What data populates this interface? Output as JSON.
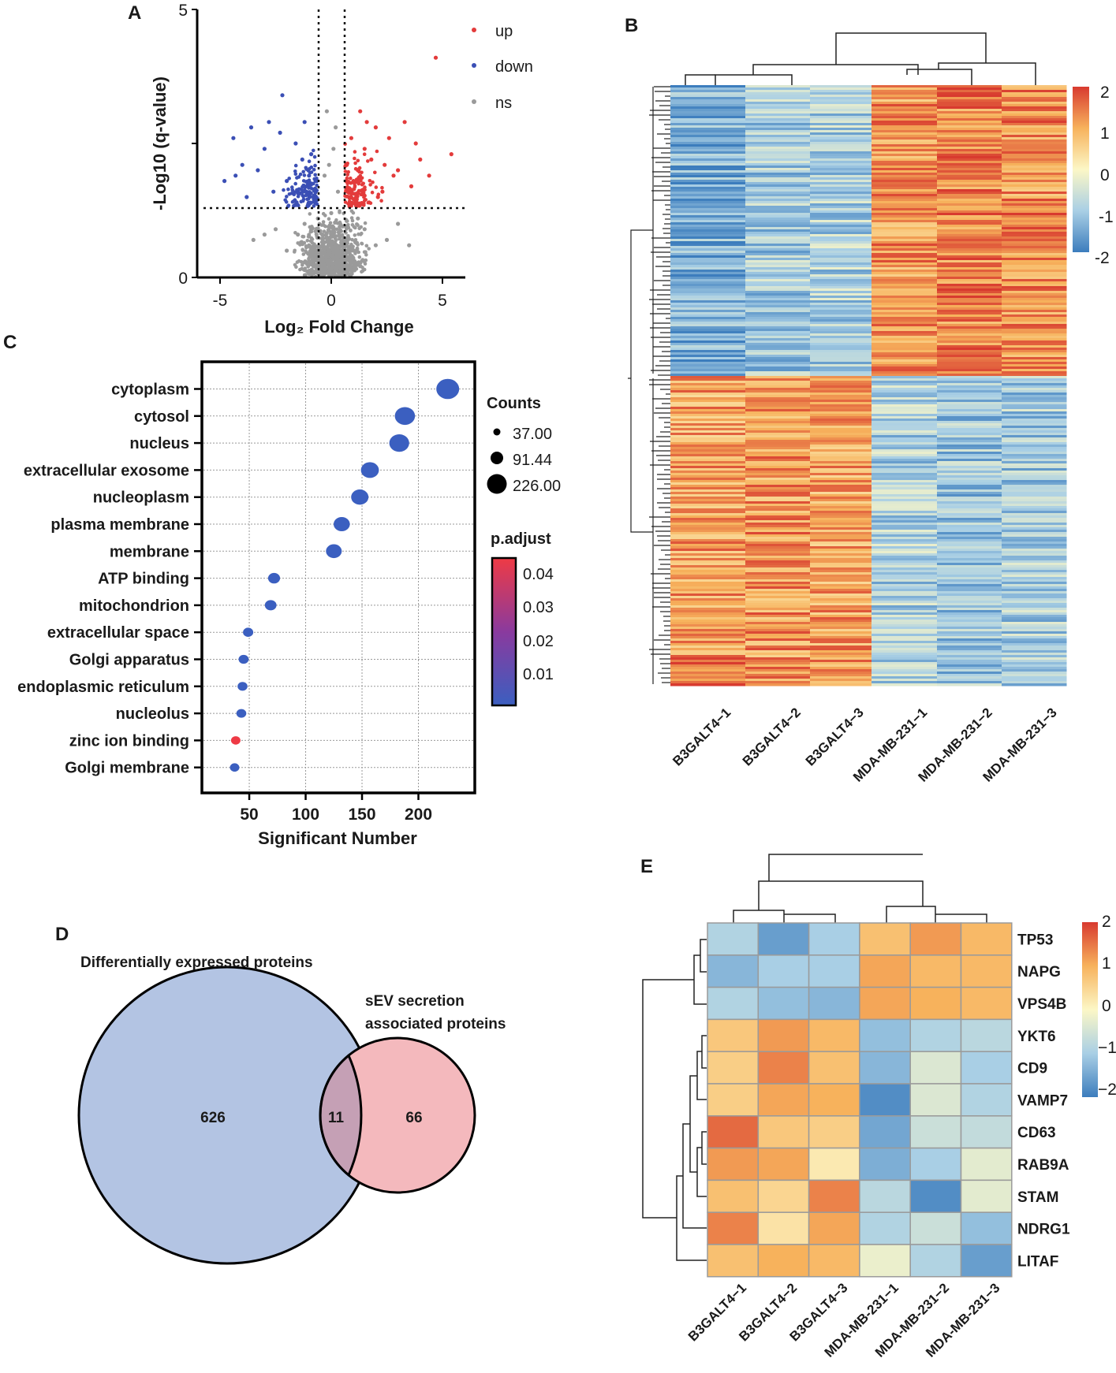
{
  "chart_data": [
    {
      "panel": "A",
      "type": "scatter",
      "title": "",
      "xlabel": "Log₂ Fold Change",
      "ylabel": "-Log10 (q-value)",
      "xlim": [
        -6,
        6
      ],
      "ylim": [
        0,
        5
      ],
      "x_ticks": [
        "-5",
        "0",
        "5"
      ],
      "y_ticks": [
        "0",
        "5"
      ],
      "thresholds": {
        "log2fc": [
          -0.6,
          0.6
        ],
        "neg_log10_q": 1.3
      },
      "legend": [
        {
          "label": "up",
          "color": "#e33b3b"
        },
        {
          "label": "down",
          "color": "#3b4fb5"
        },
        {
          "label": "ns",
          "color": "#9a9a9a"
        }
      ],
      "series": [
        {
          "name": "up",
          "points": [
            [
              0.8,
              1.5
            ],
            [
              1.0,
              1.8
            ],
            [
              1.2,
              2.0
            ],
            [
              1.5,
              2.4
            ],
            [
              1.8,
              2.2
            ],
            [
              2.0,
              2.8
            ],
            [
              2.3,
              1.6
            ],
            [
              2.6,
              2.6
            ],
            [
              3.0,
              2.0
            ],
            [
              3.3,
              2.9
            ],
            [
              3.6,
              1.7
            ],
            [
              4.0,
              2.2
            ],
            [
              4.4,
              1.9
            ],
            [
              4.7,
              4.1
            ],
            [
              5.4,
              2.3
            ],
            [
              0.9,
              2.6
            ],
            [
              1.3,
              3.1
            ],
            [
              1.7,
              1.4
            ],
            [
              2.1,
              1.5
            ],
            [
              2.8,
              1.9
            ],
            [
              0.7,
              2.1
            ],
            [
              1.1,
              1.4
            ],
            [
              1.6,
              2.9
            ],
            [
              2.4,
              2.1
            ],
            [
              3.8,
              2.5
            ]
          ]
        },
        {
          "name": "down",
          "points": [
            [
              -0.8,
              1.5
            ],
            [
              -1.0,
              1.9
            ],
            [
              -1.3,
              2.2
            ],
            [
              -1.6,
              2.5
            ],
            [
              -2.0,
              1.8
            ],
            [
              -2.3,
              2.7
            ],
            [
              -2.6,
              1.6
            ],
            [
              -3.0,
              2.4
            ],
            [
              -3.3,
              2.0
            ],
            [
              -3.6,
              2.8
            ],
            [
              -4.0,
              2.1
            ],
            [
              -4.4,
              2.6
            ],
            [
              -4.8,
              1.8
            ],
            [
              -2.2,
              3.4
            ],
            [
              -1.2,
              2.9
            ],
            [
              -0.9,
              2.3
            ],
            [
              -1.5,
              1.6
            ],
            [
              -2.8,
              2.9
            ],
            [
              -3.8,
              1.5
            ],
            [
              -4.3,
              1.9
            ]
          ]
        },
        {
          "name": "ns",
          "points": [
            [
              0,
              0.3
            ],
            [
              0.2,
              0.6
            ],
            [
              -0.2,
              0.5
            ],
            [
              0.4,
              1.0
            ],
            [
              -0.4,
              0.8
            ],
            [
              0.6,
              0.7
            ],
            [
              -0.6,
              1.1
            ],
            [
              1.0,
              0.5
            ],
            [
              -1.0,
              0.6
            ],
            [
              1.5,
              0.9
            ],
            [
              -1.5,
              0.8
            ],
            [
              2.0,
              0.6
            ],
            [
              -2.0,
              0.5
            ],
            [
              0.3,
              1.6
            ],
            [
              -0.3,
              1.9
            ],
            [
              0.1,
              2.4
            ],
            [
              -0.1,
              2.1
            ],
            [
              2.5,
              0.7
            ],
            [
              -2.5,
              0.9
            ],
            [
              3.0,
              1.0
            ],
            [
              -3.0,
              0.8
            ],
            [
              0.5,
              0.2
            ],
            [
              -0.5,
              0.3
            ],
            [
              1.2,
              1.1
            ],
            [
              -1.2,
              1.0
            ],
            [
              0.2,
              2.8
            ],
            [
              -0.2,
              3.1
            ],
            [
              3.5,
              0.6
            ],
            [
              -3.5,
              0.7
            ],
            [
              0,
              1.2
            ]
          ]
        }
      ]
    },
    {
      "panel": "B",
      "type": "heatmap",
      "title": "",
      "columns": [
        "B3GALT4−1",
        "B3GALT4−2",
        "B3GALT4−3",
        "MDA-MB-231−1",
        "MDA-MB-231−2",
        "MDA-MB-231−3"
      ],
      "column_values_by_block": [
        {
          "block": "upper gene cluster",
          "values": [
            -1.4,
            -1.0,
            -0.9,
            1.2,
            1.4,
            1.3
          ]
        },
        {
          "block": "lower gene cluster",
          "values": [
            1.1,
            1.2,
            1.1,
            -0.9,
            -1.1,
            -1.0
          ]
        }
      ],
      "scale": {
        "min": -2,
        "max": 2,
        "ticks": [
          "2",
          "1",
          "0",
          "-1",
          "-2"
        ]
      },
      "colors": {
        "low": "#3c7dbd",
        "mid": "#fcf7c6",
        "high": "#d83a2f"
      }
    },
    {
      "panel": "C",
      "type": "scatter",
      "title": "",
      "xlabel": "Significant Number",
      "ylabel": "",
      "xlim": [
        8,
        250
      ],
      "x_ticks": [
        "50",
        "100",
        "150",
        "200"
      ],
      "categories": [
        "cytoplasm",
        "cytosol",
        "nucleus",
        "extracellular exosome",
        "nucleoplasm",
        "plasma membrane",
        "membrane",
        "ATP binding",
        "mitochondrion",
        "extracellular space",
        "Golgi apparatus",
        "endoplasmic reticulum",
        "nucleolus",
        "zinc ion binding",
        "Golgi membrane"
      ],
      "values": [
        226,
        188,
        183,
        157,
        148,
        132,
        125,
        72,
        69,
        49,
        45,
        44,
        43,
        38,
        37
      ],
      "p_adjust": [
        0.001,
        0.001,
        0.001,
        0.001,
        0.001,
        0.001,
        0.001,
        0.002,
        0.002,
        0.002,
        0.002,
        0.002,
        0.002,
        0.045,
        0.002
      ],
      "size_legend_title": "Counts",
      "size_legend": [
        "37.00",
        "91.44",
        "226.00"
      ],
      "color_legend_title": "p.adjust",
      "color_legend": [
        "0.04",
        "0.03",
        "0.02",
        "0.01"
      ]
    },
    {
      "panel": "D",
      "type": "venn",
      "sets": [
        {
          "label": "Differentially expressed proteins",
          "only": "626",
          "color": "#b3c4e3"
        },
        {
          "label": "sEV secretion associated proteins",
          "only": "66",
          "color": "#f4b9bd"
        }
      ],
      "overlap": "11"
    },
    {
      "panel": "E",
      "type": "heatmap",
      "title": "",
      "rows": [
        "TP53",
        "NAPG",
        "VPS4B",
        "YKT6",
        "CD9",
        "VAMP7",
        "CD63",
        "RAB9A",
        "STAM",
        "NDRG1",
        "LITAF"
      ],
      "columns": [
        "B3GALT4−1",
        "B3GALT4−2",
        "B3GALT4−3",
        "MDA-MB-231−1",
        "MDA-MB-231−2",
        "MDA-MB-231−3"
      ],
      "values": [
        [
          -0.9,
          -1.6,
          -1.0,
          0.8,
          1.2,
          0.9
        ],
        [
          -1.3,
          -1.0,
          -1.0,
          1.1,
          0.9,
          0.9
        ],
        [
          -0.9,
          -1.2,
          -1.3,
          1.1,
          1.0,
          0.9
        ],
        [
          0.7,
          1.2,
          0.9,
          -1.2,
          -0.9,
          -0.8
        ],
        [
          0.6,
          1.4,
          0.8,
          -1.3,
          -0.4,
          -1.0
        ],
        [
          0.6,
          1.1,
          1.0,
          -1.8,
          -0.4,
          -0.9
        ],
        [
          1.6,
          0.7,
          0.6,
          -1.5,
          -0.6,
          -0.7
        ],
        [
          1.2,
          1.1,
          0.2,
          -1.4,
          -1.0,
          -0.3
        ],
        [
          0.8,
          0.5,
          1.4,
          -0.8,
          -1.8,
          -0.3
        ],
        [
          1.4,
          0.3,
          1.1,
          -0.9,
          -0.6,
          -1.2
        ],
        [
          0.8,
          1.0,
          0.9,
          -0.2,
          -0.9,
          -1.6
        ]
      ],
      "scale": {
        "min": -2,
        "max": 2,
        "ticks": [
          "2",
          "1",
          "0",
          "−1",
          "−2"
        ]
      },
      "colors": {
        "low": "#3c7dbd",
        "mid": "#fcf7c6",
        "high": "#d83a2f"
      }
    }
  ],
  "panel_labels": {
    "a": "A",
    "b": "B",
    "c": "C",
    "d": "D",
    "e": "E"
  }
}
